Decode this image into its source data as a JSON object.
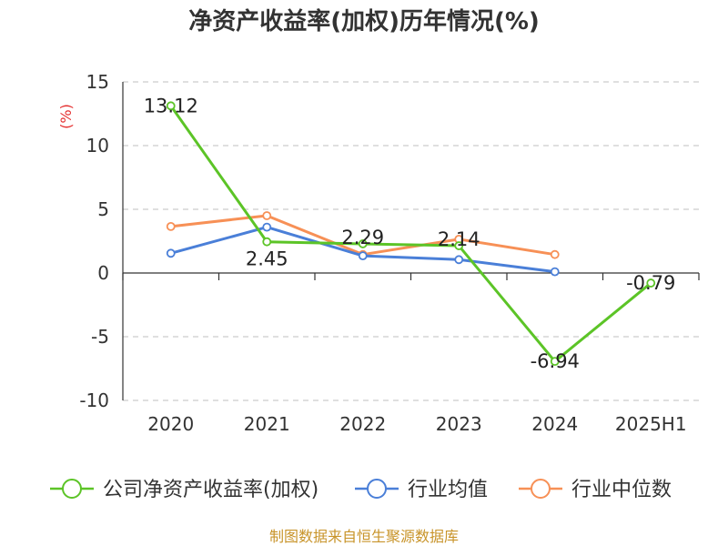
{
  "chart_data": {
    "type": "line",
    "title": "净资产收益率(加权)历年情况(%)",
    "ylabel": "(%)",
    "xlabel": "",
    "categories": [
      "2020",
      "2021",
      "2022",
      "2023",
      "2024",
      "2025H1"
    ],
    "ylim": [
      -10,
      15
    ],
    "yticks": [
      15,
      10,
      5,
      0,
      -5,
      -10
    ],
    "grid": true,
    "legend_position": "bottom",
    "series": [
      {
        "name": "公司净资产收益率(加权)",
        "color": "#5cc427",
        "values": [
          13.12,
          2.45,
          2.29,
          2.14,
          -6.94,
          -0.79
        ],
        "labels": [
          "13.12",
          "2.45",
          "2.29",
          "2.14",
          "-6.94",
          "-0.79"
        ]
      },
      {
        "name": "行业均值",
        "color": "#4a7fd8",
        "values": [
          1.55,
          3.6,
          1.35,
          1.05,
          0.1,
          null
        ]
      },
      {
        "name": "行业中位数",
        "color": "#f79056",
        "values": [
          3.65,
          4.5,
          1.45,
          2.65,
          1.45,
          null
        ]
      }
    ]
  },
  "footer": {
    "source": "制图数据来自恒生聚源数据库"
  }
}
